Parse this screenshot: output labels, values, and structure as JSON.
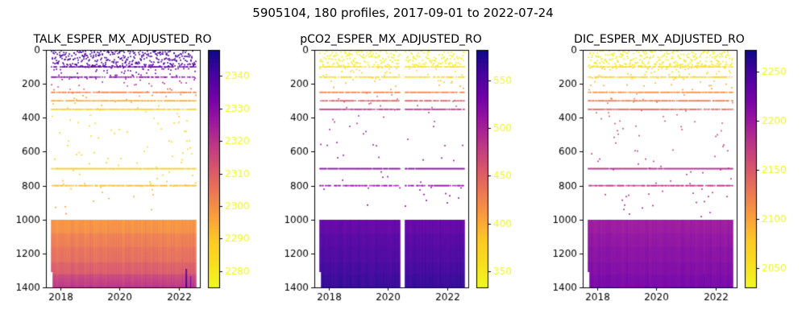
{
  "figure": {
    "title": "5905104, 180 profiles, 2017-09-01 to 2022-07-24",
    "float_id": "5905104",
    "profiles_label": "180 profiles",
    "date_start": "2017-09-01",
    "date_end": "2022-07-24",
    "n_profiles": 180,
    "background": "#ffffff"
  },
  "chart_data": [
    {
      "type": "heatmap",
      "title": "TALK_ESPER_MX_ADJUSTED_RO",
      "xlabel": "",
      "ylabel": "",
      "x_ticks": [
        2018,
        2020,
        2022
      ],
      "x_range": [
        2017.5,
        2022.72
      ],
      "x_data_range": [
        2017.67,
        2022.56
      ],
      "y_ticks": [
        0,
        200,
        400,
        600,
        800,
        1000,
        1200,
        1400
      ],
      "y_range": [
        0,
        1400
      ],
      "y_inverted": true,
      "grid": false,
      "colormap": "plasma_reversed",
      "colorbar": {
        "ticks": [
          2280,
          2290,
          2300,
          2310,
          2320,
          2330,
          2340
        ],
        "vmin": 2275,
        "vmax": 2348
      },
      "profile_depth_values": [
        [
          0,
          2342
        ],
        [
          80,
          2340
        ],
        [
          100,
          2337
        ],
        [
          160,
          2331
        ],
        [
          200,
          2316
        ],
        [
          250,
          2302
        ],
        [
          300,
          2295
        ],
        [
          350,
          2287
        ],
        [
          450,
          2284
        ],
        [
          600,
          2286
        ],
        [
          700,
          2288
        ],
        [
          800,
          2292
        ],
        [
          900,
          2296
        ],
        [
          1000,
          2299
        ],
        [
          1075,
          2300
        ],
        [
          1085,
          2303
        ],
        [
          1155,
          2304
        ],
        [
          1165,
          2306
        ],
        [
          1245,
          2307
        ],
        [
          1255,
          2310
        ],
        [
          1315,
          2311
        ],
        [
          1325,
          2315
        ],
        [
          1400,
          2320
        ]
      ],
      "line_depths": [
        100,
        160,
        250,
        300,
        350,
        700,
        800
      ],
      "line_presence": [
        0.7,
        0.65,
        0.8,
        0.8,
        0.85,
        0.95,
        0.75
      ],
      "surface_scatter": {
        "max_depth": 90,
        "dots_per_profile": 1.8
      },
      "mid_scatter": {
        "min_depth": 90,
        "max_depth": 990,
        "dots_per_profile": 1.2
      },
      "block": {
        "top_depth": 1000,
        "bottom_depth": 1400,
        "noise": 1.3,
        "left_partial": {
          "profiles": 2,
          "bottom_depth": 1310
        }
      },
      "gaps": [],
      "streaks": [
        {
          "x": 2022.22,
          "width_profiles": 2,
          "min_depth": 1290,
          "value_offset": 24
        },
        {
          "x": 2022.38,
          "width_profiles": 1,
          "min_depth": 1330,
          "value_offset": 20
        }
      ]
    },
    {
      "type": "heatmap",
      "title": "pCO2_ESPER_MX_ADJUSTED_RO",
      "xlabel": "",
      "ylabel": "",
      "x_ticks": [
        2018,
        2020,
        2022
      ],
      "x_range": [
        2017.5,
        2022.72
      ],
      "x_data_range": [
        2017.67,
        2022.56
      ],
      "y_ticks": [
        0,
        200,
        400,
        600,
        800,
        1000,
        1200,
        1400
      ],
      "y_range": [
        0,
        1400
      ],
      "y_inverted": true,
      "grid": false,
      "colormap": "plasma_reversed",
      "colorbar": {
        "ticks": [
          350,
          400,
          450,
          500,
          550
        ],
        "vmin": 333,
        "vmax": 582
      },
      "profile_depth_values": [
        [
          0,
          338
        ],
        [
          80,
          343
        ],
        [
          100,
          352
        ],
        [
          160,
          368
        ],
        [
          200,
          396
        ],
        [
          250,
          425
        ],
        [
          300,
          455
        ],
        [
          350,
          482
        ],
        [
          450,
          500
        ],
        [
          600,
          512
        ],
        [
          700,
          520
        ],
        [
          800,
          516
        ],
        [
          900,
          530
        ],
        [
          1000,
          541
        ],
        [
          1075,
          543
        ],
        [
          1085,
          548
        ],
        [
          1155,
          550
        ],
        [
          1165,
          553
        ],
        [
          1245,
          555
        ],
        [
          1255,
          558
        ],
        [
          1315,
          560
        ],
        [
          1325,
          563
        ],
        [
          1400,
          566
        ]
      ],
      "line_depths": [
        100,
        160,
        250,
        300,
        350,
        700,
        800
      ],
      "line_presence": [
        0.7,
        0.65,
        0.8,
        0.8,
        0.85,
        0.95,
        0.7
      ],
      "surface_scatter": {
        "max_depth": 90,
        "dots_per_profile": 1.3
      },
      "mid_scatter": {
        "min_depth": 90,
        "max_depth": 990,
        "dots_per_profile": 0.7
      },
      "block": {
        "top_depth": 1000,
        "bottom_depth": 1400,
        "noise": 4,
        "left_partial": {
          "profiles": 2,
          "bottom_depth": 1310
        }
      },
      "gaps": [
        {
          "x_start": 2020.4,
          "x_end": 2020.56
        }
      ],
      "streaks": []
    },
    {
      "type": "heatmap",
      "title": "DIC_ESPER_MX_ADJUSTED_RO",
      "xlabel": "",
      "ylabel": "",
      "x_ticks": [
        2018,
        2020,
        2022
      ],
      "x_range": [
        2017.5,
        2022.72
      ],
      "x_data_range": [
        2017.67,
        2022.56
      ],
      "y_ticks": [
        0,
        200,
        400,
        600,
        800,
        1000,
        1200,
        1400
      ],
      "y_range": [
        0,
        1400
      ],
      "y_inverted": true,
      "grid": false,
      "colormap": "plasma_reversed",
      "colorbar": {
        "ticks": [
          2050,
          2100,
          2150,
          2200,
          2250
        ],
        "vmin": 2030,
        "vmax": 2272
      },
      "profile_depth_values": [
        [
          0,
          2038
        ],
        [
          80,
          2043
        ],
        [
          100,
          2052
        ],
        [
          160,
          2072
        ],
        [
          200,
          2093
        ],
        [
          250,
          2112
        ],
        [
          300,
          2128
        ],
        [
          350,
          2142
        ],
        [
          450,
          2158
        ],
        [
          600,
          2172
        ],
        [
          700,
          2183
        ],
        [
          800,
          2180
        ],
        [
          900,
          2192
        ],
        [
          1000,
          2200
        ],
        [
          1075,
          2202
        ],
        [
          1085,
          2206
        ],
        [
          1155,
          2208
        ],
        [
          1165,
          2211
        ],
        [
          1245,
          2212
        ],
        [
          1255,
          2215
        ],
        [
          1315,
          2216
        ],
        [
          1325,
          2219
        ],
        [
          1400,
          2222
        ]
      ],
      "line_depths": [
        100,
        160,
        250,
        300,
        350,
        700,
        800
      ],
      "line_presence": [
        0.7,
        0.65,
        0.8,
        0.8,
        0.85,
        0.95,
        0.75
      ],
      "surface_scatter": {
        "max_depth": 90,
        "dots_per_profile": 1.5
      },
      "mid_scatter": {
        "min_depth": 90,
        "max_depth": 990,
        "dots_per_profile": 1.0
      },
      "block": {
        "top_depth": 1000,
        "bottom_depth": 1400,
        "noise": 3,
        "left_partial": {
          "profiles": 2,
          "bottom_depth": 1310
        }
      },
      "gaps": [],
      "streaks": [
        {
          "x": 2021.6,
          "width_profiles": 1,
          "min_depth": 1320,
          "value_offset": 18
        }
      ]
    }
  ]
}
